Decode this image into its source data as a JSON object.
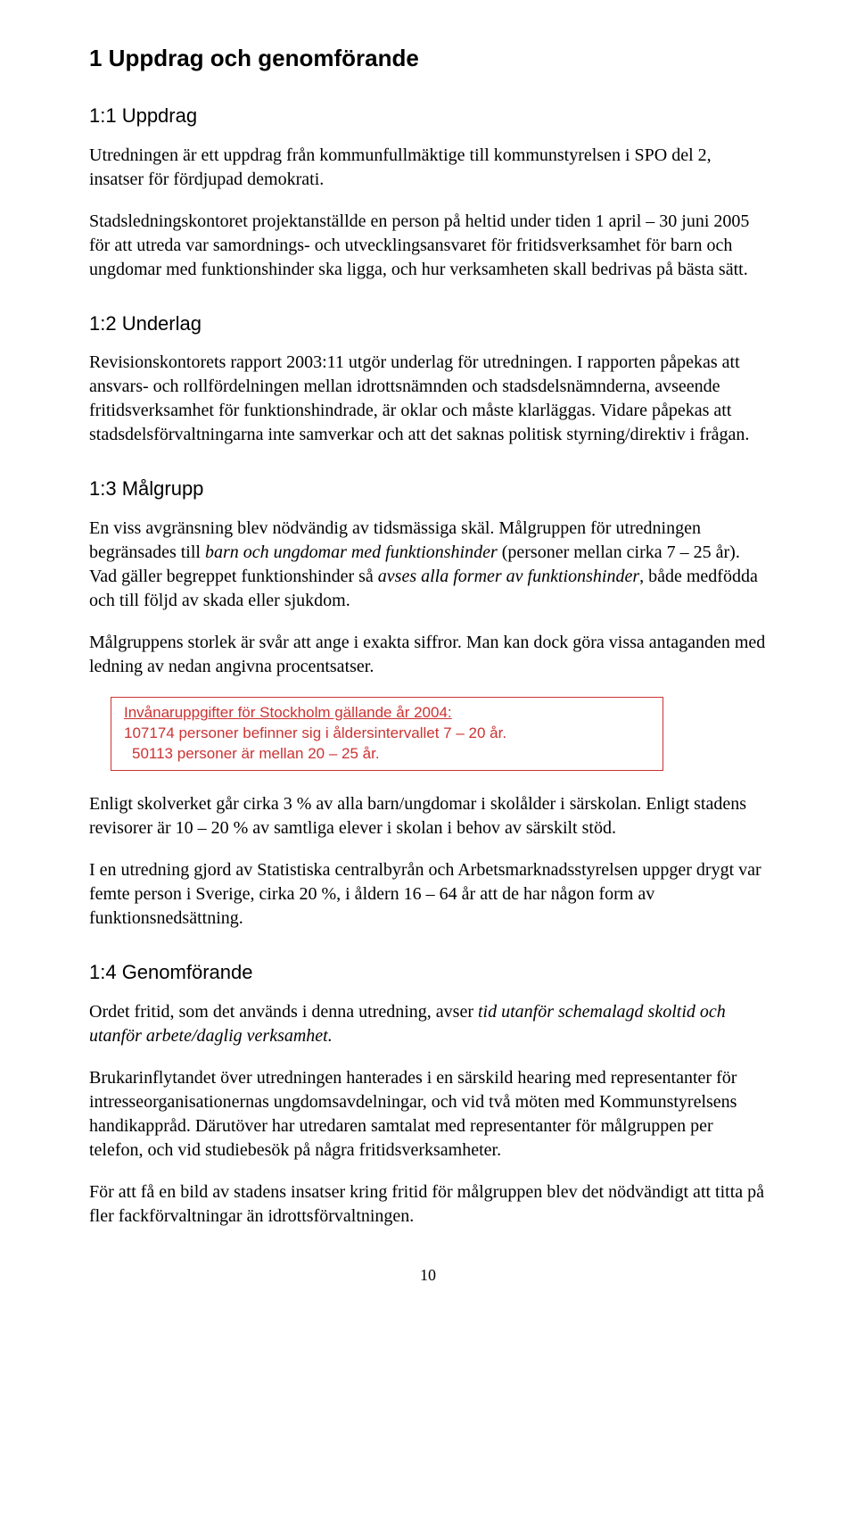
{
  "title": "1  Uppdrag och genomförande",
  "sections": {
    "s1": {
      "heading": "1:1  Uppdrag",
      "p1": "Utredningen är ett uppdrag från kommunfullmäktige till kommunstyrelsen i SPO del 2, insatser för fördjupad demokrati.",
      "p2": "Stadsledningskontoret projektanställde en person på heltid under tiden 1 april – 30 juni 2005 för att utreda var samordnings- och utvecklingsansvaret för fritidsverksamhet för barn och ungdomar med funktionshinder ska ligga, och hur verksamheten skall bedrivas på bästa sätt."
    },
    "s2": {
      "heading": "1:2  Underlag",
      "p1": "Revisionskontorets rapport 2003:11 utgör underlag för utredningen. I rapporten påpekas att ansvars- och rollfördelningen mellan idrottsnämnden och stadsdelsnämnderna, avseende fritidsverksamhet för funktionshindrade, är oklar och måste klarläggas. Vidare påpekas att stadsdelsförvaltningarna inte samverkar och att det saknas politisk styrning/direktiv i frågan."
    },
    "s3": {
      "heading": "1:3  Målgrupp",
      "p1_pre": "En viss avgränsning blev nödvändig av tidsmässiga skäl. Målgruppen för utredningen begränsades till ",
      "p1_em1": "barn och ungdomar med funktionshinder",
      "p1_mid": " (personer mellan cirka  7 – 25 år). Vad gäller begreppet funktionshinder så ",
      "p1_em2": "avses alla former av funktionshinder",
      "p1_post": ", både medfödda och till följd av skada eller sjukdom.",
      "p2": "Målgruppens storlek är svår att ange i exakta siffror. Man kan dock göra vissa antaganden med ledning av nedan angivna procentsatser.",
      "callout": {
        "title": "Invånaruppgifter för Stockholm gällande år 2004:",
        "line1": "107174 personer befinner sig i åldersintervallet 7 – 20 år.",
        "line2": "50113 personer är mellan 20 – 25 år.",
        "border_color": "#cc3333",
        "text_color": "#cc3333"
      },
      "p3": "Enligt skolverket går cirka 3 % av alla barn/ungdomar i skolålder i särskolan. Enligt stadens revisorer är 10 – 20 % av samtliga elever i skolan i behov av särskilt stöd.",
      "p4": "I en utredning gjord av Statistiska centralbyrån och Arbetsmarknadsstyrelsen uppger drygt var femte person i Sverige, cirka 20 %, i åldern 16 – 64 år att de har någon form av funktionsnedsättning."
    },
    "s4": {
      "heading": "1:4  Genomförande",
      "p1_pre": "Ordet fritid, som det används i denna utredning,  avser ",
      "p1_em": "tid utanför schemalagd skoltid och utanför arbete/daglig verksamhet.",
      "p2": "Brukarinflytandet över utredningen hanterades i en särskild hearing med representanter för intresseorganisationernas ungdomsavdelningar, och vid två möten med Kommunstyrelsens handikappråd. Därutöver har utredaren samtalat med representanter för målgruppen per telefon, och vid studiebesök på några fritidsverksamheter.",
      "p3": "För att få en bild av stadens insatser kring fritid för målgruppen blev det nödvändigt att titta på fler fackförvaltningar än idrottsförvaltningen."
    }
  },
  "page_number": "10",
  "colors": {
    "body_text": "#000000",
    "callout": "#cc3333",
    "background": "#ffffff"
  }
}
